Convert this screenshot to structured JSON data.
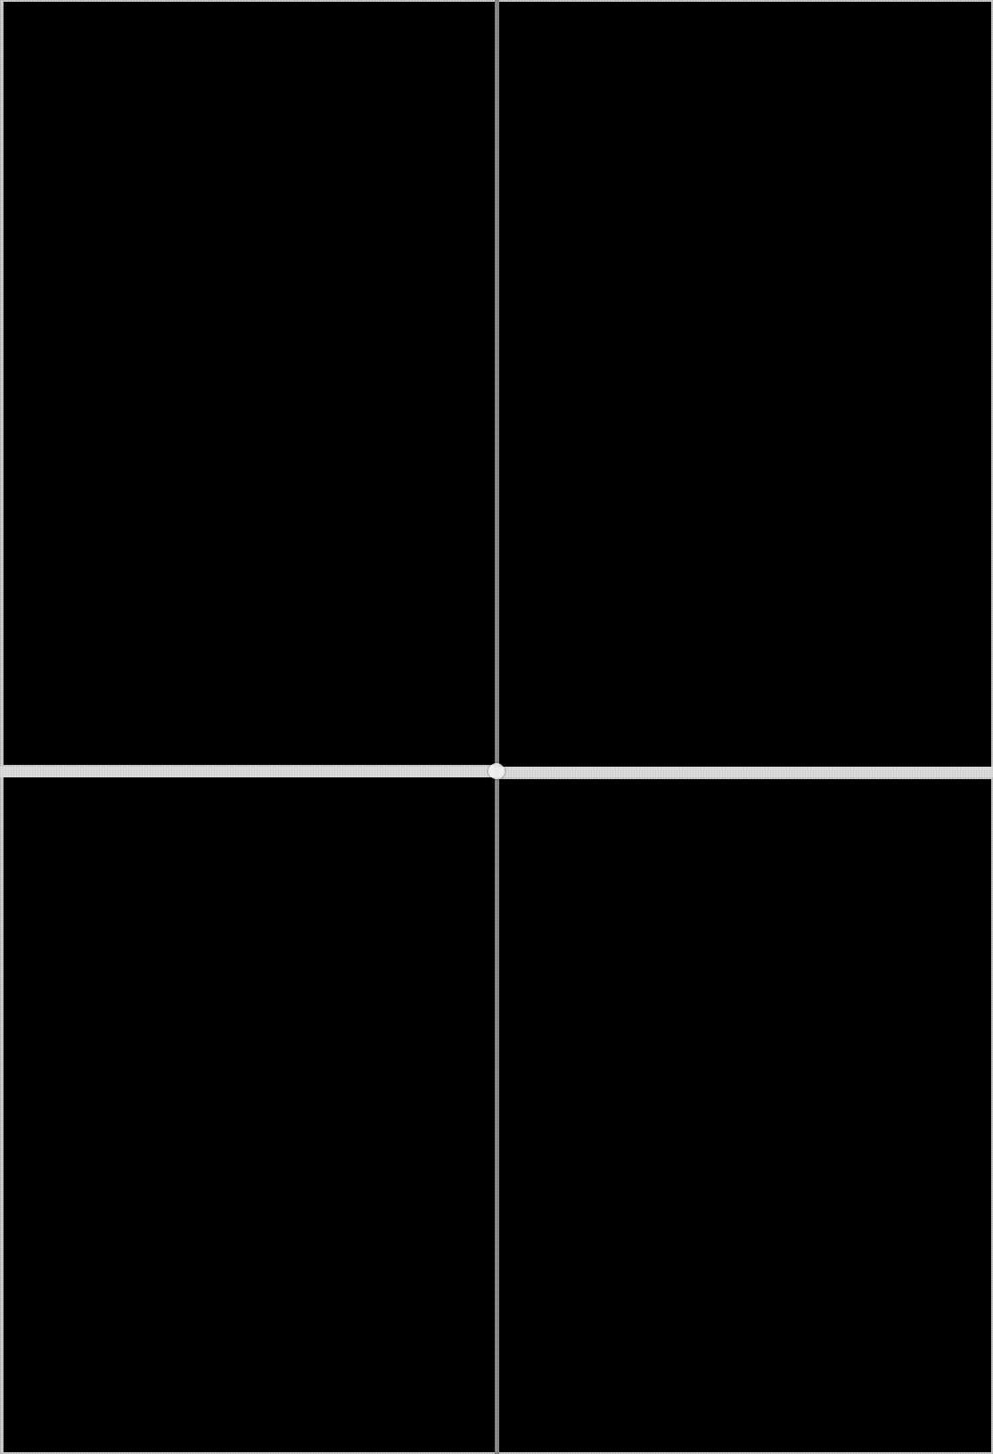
{
  "image": {
    "panels": [
      {
        "name": "top-left-panel",
        "color": "#000000"
      },
      {
        "name": "top-right-panel",
        "color": "#000000"
      },
      {
        "name": "bottom-left-panel",
        "color": "#000000"
      },
      {
        "name": "bottom-right-panel",
        "color": "#000000"
      }
    ],
    "background_color": "#cfcfcf"
  }
}
